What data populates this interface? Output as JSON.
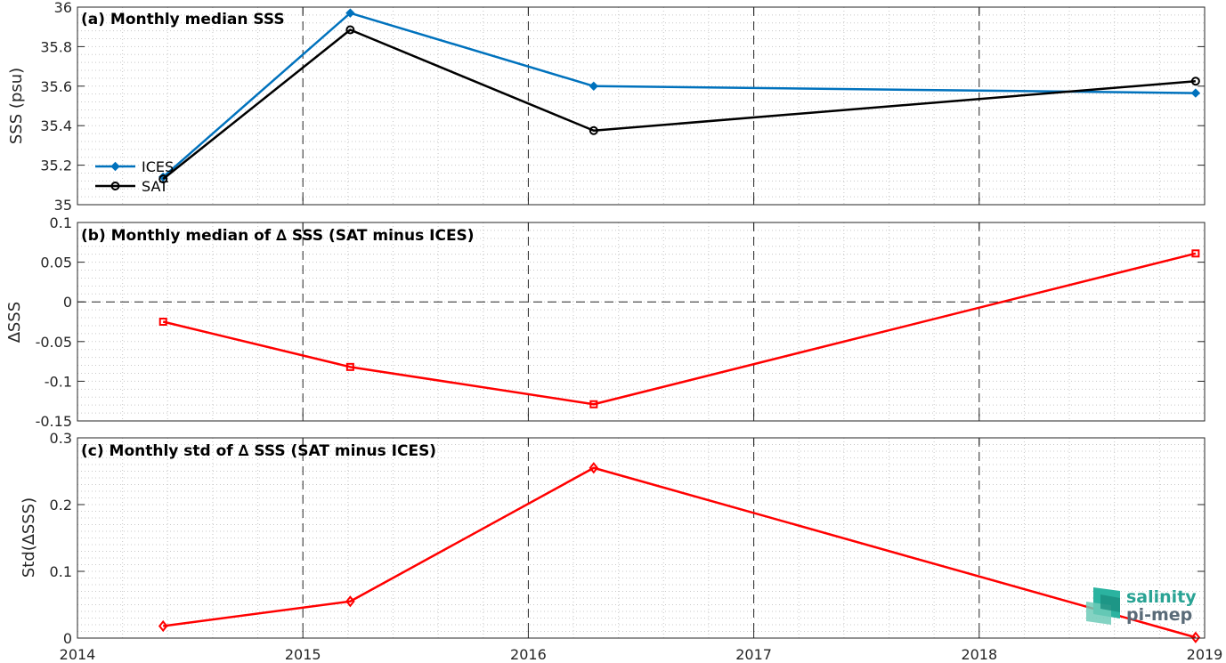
{
  "x_ticks": [
    "2014",
    "2015",
    "2016",
    "2017",
    "2018",
    "2019"
  ],
  "colors": {
    "ices": "#0072bd",
    "sat": "#000000",
    "delta": "#ff0000"
  },
  "logo": {
    "line1": "salinity",
    "line2": "pi-mep"
  },
  "chart_data": [
    {
      "type": "line",
      "title": "(a) Monthly median SSS",
      "ylabel": "SSS (psu)",
      "xlim": [
        2014,
        2019
      ],
      "ylim": [
        35,
        36
      ],
      "y_ticks": [
        "35",
        "35.2",
        "35.4",
        "35.6",
        "35.8",
        "36"
      ],
      "grid": "on",
      "legend_position": "bottom-left",
      "series": [
        {
          "name": "ICES",
          "color": "#0072bd",
          "marker": "diamond-filled",
          "x": [
            2014.38,
            2015.21,
            2016.29,
            2018.96
          ],
          "y": [
            35.14,
            35.97,
            35.6,
            35.565
          ]
        },
        {
          "name": "SAT",
          "color": "#000000",
          "marker": "circle",
          "x": [
            2014.38,
            2015.21,
            2016.29,
            2018.96
          ],
          "y": [
            35.13,
            35.885,
            35.375,
            35.625
          ]
        }
      ]
    },
    {
      "type": "line",
      "title": "(b) Monthly median of ∆ SSS (SAT minus ICES)",
      "ylabel": "∆SSS",
      "xlim": [
        2014,
        2019
      ],
      "ylim": [
        -0.15,
        0.1
      ],
      "y_ticks": [
        "-0.15",
        "-0.1",
        "-0.05",
        "0",
        "0.05",
        "0.1"
      ],
      "grid": "on",
      "series": [
        {
          "color": "#ff0000",
          "marker": "square",
          "x": [
            2014.38,
            2015.21,
            2016.29,
            2018.96
          ],
          "y": [
            -0.025,
            -0.082,
            -0.129,
            0.061
          ]
        }
      ]
    },
    {
      "type": "line",
      "title": "(c) Monthly std of ∆ SSS (SAT minus ICES)",
      "ylabel": "Std(∆SSS)",
      "xlim": [
        2014,
        2019
      ],
      "ylim": [
        0,
        0.3
      ],
      "y_ticks": [
        "0",
        "0.1",
        "0.2",
        "0.3"
      ],
      "grid": "on",
      "series": [
        {
          "color": "#ff0000",
          "marker": "diamond",
          "x": [
            2014.38,
            2015.21,
            2016.29,
            2018.96
          ],
          "y": [
            0.018,
            0.055,
            0.255,
            0.001
          ]
        }
      ]
    }
  ]
}
